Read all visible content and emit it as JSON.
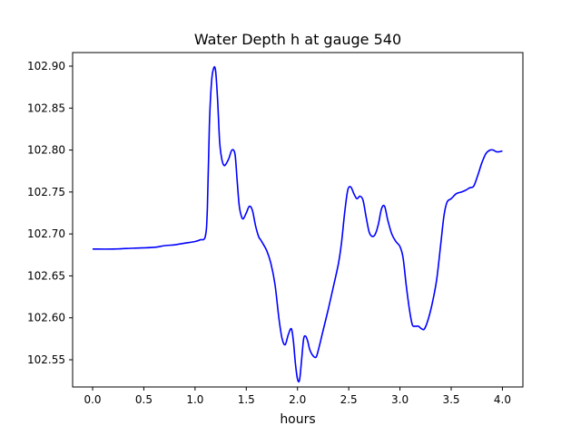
{
  "chart_data": {
    "type": "line",
    "title": "Water Depth h at gauge 540",
    "xlabel": "hours",
    "ylabel": "",
    "xlim": [
      -0.195,
      4.2
    ],
    "ylim": [
      102.5176,
      102.9162
    ],
    "x_ticks": [
      0.0,
      0.5,
      1.0,
      1.5,
      2.0,
      2.5,
      3.0,
      3.5,
      4.0
    ],
    "x_tick_labels": [
      "0.0",
      "0.5",
      "1.0",
      "1.5",
      "2.0",
      "2.5",
      "3.0",
      "3.5",
      "4.0"
    ],
    "y_ticks": [
      102.55,
      102.6,
      102.65,
      102.7,
      102.75,
      102.8,
      102.85,
      102.9
    ],
    "y_tick_labels": [
      "102.55",
      "102.60",
      "102.65",
      "102.70",
      "102.75",
      "102.80",
      "102.85",
      "102.90"
    ],
    "grid": false,
    "series": [
      {
        "color": "#0000ff",
        "x": [
          0.0,
          0.2,
          0.4,
          0.6,
          0.7,
          0.8,
          0.9,
          1.0,
          1.05,
          1.1,
          1.12,
          1.14,
          1.16,
          1.18,
          1.2,
          1.22,
          1.24,
          1.26,
          1.28,
          1.3,
          1.33,
          1.36,
          1.39,
          1.41,
          1.43,
          1.45,
          1.47,
          1.5,
          1.53,
          1.56,
          1.59,
          1.62,
          1.64,
          1.66,
          1.7,
          1.74,
          1.78,
          1.82,
          1.85,
          1.88,
          1.91,
          1.94,
          1.96,
          1.98,
          2.0,
          2.02,
          2.04,
          2.06,
          2.08,
          2.1,
          2.12,
          2.15,
          2.18,
          2.2,
          2.25,
          2.3,
          2.35,
          2.4,
          2.43,
          2.46,
          2.49,
          2.52,
          2.55,
          2.58,
          2.61,
          2.64,
          2.67,
          2.7,
          2.73,
          2.76,
          2.79,
          2.82,
          2.85,
          2.88,
          2.92,
          2.96,
          3.0,
          3.03,
          3.06,
          3.09,
          3.12,
          3.15,
          3.18,
          3.21,
          3.24,
          3.28,
          3.32,
          3.36,
          3.4,
          3.43,
          3.46,
          3.5,
          3.55,
          3.6,
          3.64,
          3.68,
          3.72,
          3.76,
          3.8,
          3.84,
          3.88,
          3.91,
          3.94,
          3.97,
          4.0
        ],
        "y": [
          102.682,
          102.682,
          102.683,
          102.684,
          102.686,
          102.687,
          102.689,
          102.691,
          102.693,
          102.697,
          102.73,
          102.83,
          102.88,
          102.897,
          102.895,
          102.86,
          102.81,
          102.79,
          102.782,
          102.783,
          102.79,
          102.8,
          102.795,
          102.765,
          102.735,
          102.722,
          102.718,
          102.725,
          102.733,
          102.728,
          102.71,
          102.697,
          102.693,
          102.689,
          102.68,
          102.665,
          102.64,
          102.598,
          102.575,
          102.568,
          102.58,
          102.587,
          102.572,
          102.545,
          102.527,
          102.526,
          102.55,
          102.575,
          102.578,
          102.572,
          102.562,
          102.555,
          102.553,
          102.56,
          102.585,
          102.61,
          102.637,
          102.665,
          102.69,
          102.725,
          102.752,
          102.756,
          102.748,
          102.742,
          102.745,
          102.74,
          102.72,
          102.702,
          102.697,
          102.7,
          102.712,
          102.73,
          102.733,
          102.717,
          102.7,
          102.691,
          102.685,
          102.672,
          102.64,
          102.612,
          102.592,
          102.59,
          102.59,
          102.587,
          102.587,
          102.6,
          102.62,
          102.647,
          102.69,
          102.722,
          102.738,
          102.742,
          102.748,
          102.75,
          102.752,
          102.755,
          102.757,
          102.77,
          102.785,
          102.796,
          102.8,
          102.8,
          102.798,
          102.798,
          102.799
        ]
      }
    ]
  }
}
